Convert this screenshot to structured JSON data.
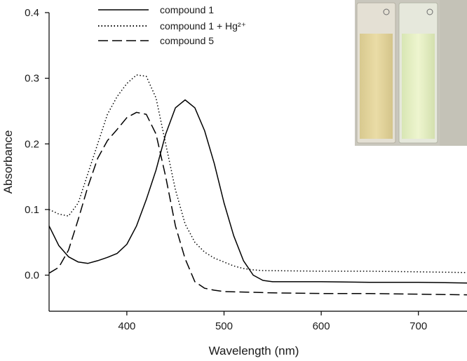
{
  "chart_data": {
    "type": "line",
    "xlabel": "Wavelength (nm)",
    "ylabel": "Absorbance",
    "xlim": [
      320,
      750
    ],
    "ylim": [
      -0.055,
      0.4
    ],
    "x_ticks": [
      400,
      500,
      600,
      700
    ],
    "y_ticks": [
      0.0,
      0.1,
      0.2,
      0.3,
      0.4
    ],
    "y_tick_labels": [
      "0.0",
      "0.1",
      "0.2",
      "0.3",
      "0.4"
    ],
    "grid": false,
    "legend_position": "top-center",
    "inset": {
      "description": "photo of two cuvettes: pale yellow (left) and pale green (right)"
    },
    "series": [
      {
        "name": "compound 1",
        "style": "solid",
        "x": [
          320,
          330,
          340,
          350,
          360,
          370,
          380,
          390,
          400,
          410,
          420,
          430,
          440,
          450,
          460,
          470,
          480,
          490,
          500,
          510,
          520,
          530,
          540,
          550,
          600,
          650,
          700,
          750
        ],
        "y": [
          0.075,
          0.045,
          0.028,
          0.02,
          0.018,
          0.022,
          0.027,
          0.033,
          0.047,
          0.075,
          0.115,
          0.16,
          0.215,
          0.255,
          0.267,
          0.255,
          0.22,
          0.17,
          0.11,
          0.06,
          0.022,
          0.0,
          -0.008,
          -0.01,
          -0.01,
          -0.011,
          -0.011,
          -0.012
        ]
      },
      {
        "name": "compound 1 + Hg²⁺",
        "style": "dotted",
        "x": [
          320,
          330,
          340,
          350,
          360,
          370,
          380,
          390,
          400,
          410,
          420,
          430,
          440,
          450,
          460,
          470,
          480,
          490,
          500,
          510,
          520,
          530,
          540,
          600,
          650,
          700,
          750
        ],
        "y": [
          0.1,
          0.093,
          0.09,
          0.11,
          0.155,
          0.2,
          0.245,
          0.272,
          0.292,
          0.305,
          0.303,
          0.27,
          0.2,
          0.13,
          0.078,
          0.05,
          0.035,
          0.026,
          0.02,
          0.014,
          0.01,
          0.008,
          0.007,
          0.006,
          0.006,
          0.005,
          0.004
        ]
      },
      {
        "name": "compound 5",
        "style": "dashed",
        "x": [
          320,
          330,
          340,
          350,
          360,
          370,
          380,
          390,
          400,
          410,
          420,
          430,
          440,
          450,
          460,
          470,
          480,
          490,
          500,
          550,
          600,
          650,
          700,
          750
        ],
        "y": [
          0.003,
          0.012,
          0.038,
          0.085,
          0.135,
          0.178,
          0.205,
          0.222,
          0.24,
          0.248,
          0.245,
          0.215,
          0.15,
          0.075,
          0.025,
          -0.01,
          -0.02,
          -0.023,
          -0.025,
          -0.027,
          -0.028,
          -0.028,
          -0.029,
          -0.03
        ]
      }
    ]
  }
}
